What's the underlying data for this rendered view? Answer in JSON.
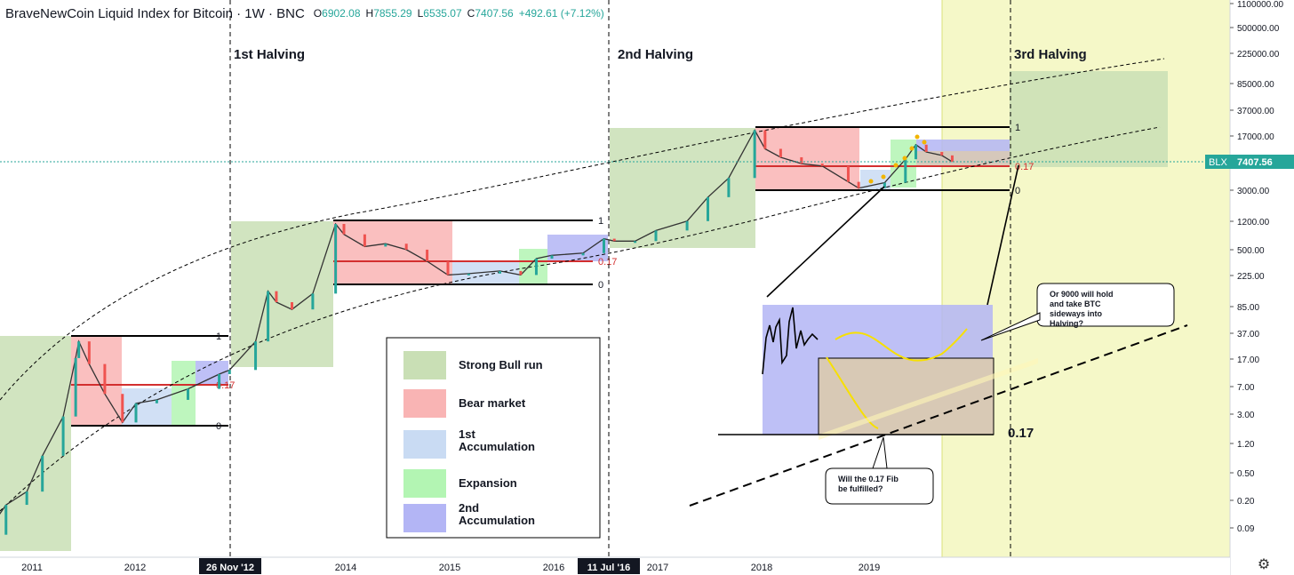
{
  "header": {
    "symbol_title": "BraveNewCoin Liquid Index for Bitcoin · 1W · BNC",
    "open_label": "O",
    "open": "6902.08",
    "high_label": "H",
    "high": "7855.29",
    "low_label": "L",
    "low": "6535.07",
    "close_label": "C",
    "close": "7407.56",
    "change": "+492.61 (+7.12%)"
  },
  "price_badge": {
    "symbol": "BLX",
    "value": "7407.56"
  },
  "colors": {
    "bull": "#c9dfb5",
    "bear": "#f9b4b4",
    "acc1": "#c9dbf3",
    "expansion": "#b3f5b3",
    "acc2": "#b3b5f5",
    "projection_zone": "#f5f8c8",
    "fib_red": "#d32f2f",
    "last_price": "#26a69a"
  },
  "chart_data": {
    "type": "candlestick",
    "title": "BraveNewCoin Liquid Index for Bitcoin · 1W · BNC",
    "y_scale": "log",
    "y_ticks": [
      "1100000.00",
      "500000.00",
      "225000.00",
      "85000.00",
      "37000.00",
      "17000.00",
      "7000.00",
      "3000.00",
      "1200.00",
      "500.00",
      "225.00",
      "85.00",
      "37.00",
      "17.00",
      "7.00",
      "3.00",
      "1.20",
      "0.50",
      "0.20",
      "0.09"
    ],
    "x_ticks": [
      "2011",
      "2012",
      "26 Nov '12",
      "2014",
      "2015",
      "2016",
      "11 Jul '16",
      "2017",
      "2018",
      "2019"
    ],
    "halvings": [
      {
        "label": "1st Halving",
        "date": "26 Nov '12"
      },
      {
        "label": "2nd Halving",
        "date": "11 Jul '16"
      },
      {
        "label": "3rd Halving",
        "date": ""
      }
    ],
    "price_path": [
      [
        2010.55,
        0.08
      ],
      [
        2010.75,
        0.2
      ],
      [
        2010.95,
        0.3
      ],
      [
        2011.1,
        0.9
      ],
      [
        2011.3,
        3
      ],
      [
        2011.42,
        18
      ],
      [
        2011.45,
        30
      ],
      [
        2011.55,
        15
      ],
      [
        2011.7,
        6
      ],
      [
        2011.87,
        2.5
      ],
      [
        2012.0,
        4.5
      ],
      [
        2012.2,
        5
      ],
      [
        2012.5,
        7
      ],
      [
        2012.8,
        11
      ],
      [
        2012.9,
        12.5
      ],
      [
        2013.15,
        30
      ],
      [
        2013.27,
        140
      ],
      [
        2013.35,
        100
      ],
      [
        2013.5,
        80
      ],
      [
        2013.7,
        130
      ],
      [
        2013.92,
        1100
      ],
      [
        2014.0,
        800
      ],
      [
        2014.2,
        550
      ],
      [
        2014.4,
        600
      ],
      [
        2014.6,
        500
      ],
      [
        2014.8,
        350
      ],
      [
        2015.0,
        230
      ],
      [
        2015.2,
        240
      ],
      [
        2015.5,
        260
      ],
      [
        2015.7,
        230
      ],
      [
        2015.85,
        380
      ],
      [
        2016.0,
        420
      ],
      [
        2016.3,
        450
      ],
      [
        2016.5,
        700
      ],
      [
        2016.6,
        650
      ],
      [
        2016.8,
        650
      ],
      [
        2017.0,
        900
      ],
      [
        2017.3,
        1200
      ],
      [
        2017.5,
        2500
      ],
      [
        2017.7,
        4500
      ],
      [
        2017.95,
        19500
      ],
      [
        2018.05,
        11000
      ],
      [
        2018.2,
        8500
      ],
      [
        2018.4,
        7000
      ],
      [
        2018.6,
        6500
      ],
      [
        2018.85,
        4000
      ],
      [
        2018.95,
        3300
      ],
      [
        2019.2,
        3900
      ],
      [
        2019.4,
        8000
      ],
      [
        2019.5,
        12500
      ],
      [
        2019.6,
        10000
      ],
      [
        2019.75,
        9000
      ],
      [
        2019.85,
        7400
      ]
    ],
    "series": [
      {
        "name": "Strong Bull run"
      },
      {
        "name": "Bear market"
      },
      {
        "name": "1st Accumulation"
      },
      {
        "name": "Expansion"
      },
      {
        "name": "2nd Accumulation"
      }
    ],
    "fib_levels": [
      "1",
      "0.17",
      "0"
    ],
    "annotations": {
      "fib_label": "0.17",
      "callout_top": "Or 9000 will hold and take BTC sideways into Halving?",
      "callout_bottom": "Will the 0.17 Fib be fulfilled?"
    },
    "last_price": 7407.56
  },
  "legend": [
    {
      "label": "Strong Bull run",
      "color": "#c9dfb5"
    },
    {
      "label": "Bear market",
      "color": "#f9b4b4"
    },
    {
      "label": "1st\nAccumulation",
      "color": "#c9dbf3"
    },
    {
      "label": "Expansion",
      "color": "#b3f5b3"
    },
    {
      "label": "2nd\nAccumulation",
      "color": "#b3b5f5"
    }
  ],
  "icons": {
    "settings": "gear-icon"
  }
}
